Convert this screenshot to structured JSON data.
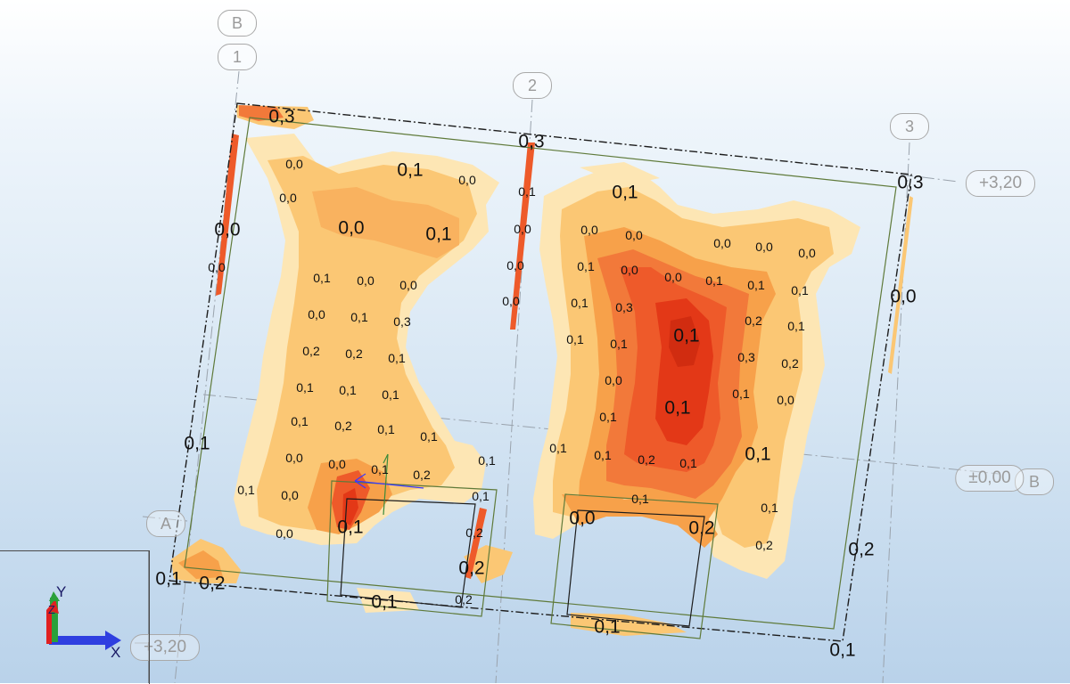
{
  "colors": {
    "background_top": "#ffffff",
    "background_bottom": "#b9d2ea",
    "map_pale": "#fde6b4",
    "map_light": "#fbc774",
    "map_mid": "#f7a14a",
    "map_high": "#ee5a2a",
    "map_peak": "#e33817",
    "slab_edge": "#1c1c1c",
    "slab_offset": "#5f7a3a",
    "grid_line": "#9aa3ad"
  },
  "grid_axes": {
    "B_top": "B",
    "axis_1": "1",
    "axis_2": "2",
    "axis_3": "3",
    "A": "A",
    "B_right": "B"
  },
  "levels": {
    "top_right": "+3,20",
    "right_mid": "±0,00",
    "bottom_left": "+3,20"
  },
  "triad": {
    "y": "Y",
    "z": "Z",
    "x": "X"
  },
  "values": {
    "v1": "0,3",
    "v2": "0,3",
    "v3": "0,0",
    "v4": "0,1",
    "v5": "0,0",
    "v6": "0,0",
    "v7": "0,1",
    "v8": "0,1",
    "v9": "0,3",
    "v10": "0,0",
    "v11": "0,0",
    "v12": "0,1",
    "v13": "0,0",
    "v14": "0,0",
    "v15": "0,0",
    "v16": "0,0",
    "v17": "0,0",
    "v18": "0,0",
    "v19": "0,0",
    "v20": "0,0",
    "v21": "0,1",
    "v22": "0,0",
    "v23": "0,0",
    "v24": "0,1",
    "v25": "0,0",
    "v26": "0,0",
    "v27": "0,1",
    "v28": "0,1",
    "v29": "0,1",
    "v30": "0,0",
    "v31": "0,0",
    "v32": "0,1",
    "v33": "0,3",
    "v34": "0,0",
    "v35": "0,1",
    "v36": "0,3",
    "v37": "0,2",
    "v38": "0,1",
    "v39": "0,1",
    "v40": "0,2",
    "v41": "0,2",
    "v42": "0,1",
    "v43": "0,1",
    "v44": "0,1",
    "v45": "0,3",
    "v46": "0,2",
    "v47": "0,0",
    "v48": "0,1",
    "v49": "0,1",
    "v50": "0,1",
    "v51": "0,1",
    "v52": "0,0",
    "v53": "0,1",
    "v54": "0,1",
    "v55": "0,1",
    "v56": "0,2",
    "v57": "0,1",
    "v58": "0,1",
    "v59": "0,1",
    "v60": "0,1",
    "v61": "0,1",
    "v62": "0,2",
    "v63": "0,1",
    "v64": "0,1",
    "v65": "0,0",
    "v66": "0,0",
    "v67": "0,1",
    "v68": "0,2",
    "v69": "0,1",
    "v70": "0,1",
    "v71": "0,0",
    "v72": "0,1",
    "v73": "0,1",
    "v74": "0,1",
    "v75": "0,0",
    "v76": "0,1",
    "v77": "0,2",
    "v78": "0,0",
    "v79": "0,2",
    "v80": "0,2",
    "v81": "0,2",
    "v82": "0,2",
    "v83": "0,1",
    "v84": "0,2",
    "v85": "0,2",
    "v86": "0,1",
    "v87": "0,1",
    "v88": "0,1",
    "v89": "0,1",
    "v90": "0,2",
    "v91": "0,2",
    "v92": "0,0",
    "v93": "0,2"
  }
}
